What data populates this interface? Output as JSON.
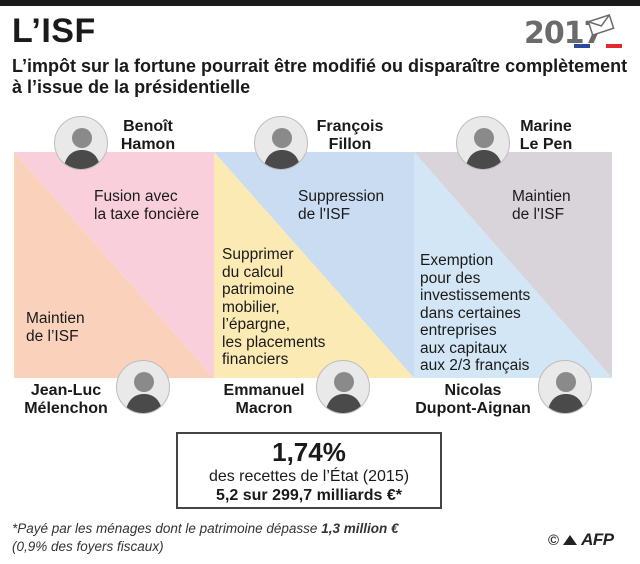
{
  "header": {
    "title": "L’ISF",
    "logo_year": "2017",
    "subtitle": "L’impôt sur la fortune pourrait être modifié ou disparaître complètement à l’issue de la présidentielle"
  },
  "colors": {
    "hamon": "#f9cfdc",
    "melenchon": "#fad2bc",
    "fillon": "#c9dcf2",
    "macron": "#fbeab3",
    "lepen": "#d8d4da",
    "dupont_aignan": "#d3e6f5",
    "flag_blue": "#2b4a9b",
    "flag_white": "#ffffff",
    "flag_red": "#e2272d"
  },
  "candidates": [
    {
      "id": "hamon",
      "name_lines": [
        "Benoît",
        "Hamon"
      ],
      "proposal_lines": [
        "Fusion avec",
        "la taxe foncière"
      ]
    },
    {
      "id": "melenchon",
      "name_lines": [
        "Jean-Luc",
        "Mélenchon"
      ],
      "proposal_lines": [
        "Maintien",
        "de l’ISF"
      ]
    },
    {
      "id": "fillon",
      "name_lines": [
        "François",
        "Fillon"
      ],
      "proposal_lines": [
        "Suppression",
        "de l'ISF"
      ]
    },
    {
      "id": "macron",
      "name_lines": [
        "Emmanuel",
        "Macron"
      ],
      "proposal_lines": [
        "Supprimer",
        "du calcul",
        "patrimoine",
        "mobilier,",
        "l’épargne,",
        "les placements",
        "financiers"
      ]
    },
    {
      "id": "lepen",
      "name_lines": [
        "Marine",
        "Le Pen"
      ],
      "proposal_lines": [
        "Maintien",
        "de l'ISF"
      ]
    },
    {
      "id": "dupont_aignan",
      "name_lines": [
        "Nicolas",
        "Dupont-Aignan"
      ],
      "proposal_lines": [
        "Exemption",
        "pour des",
        "investissements",
        "dans certaines",
        "entreprises",
        "aux capitaux",
        "aux 2/3 français"
      ]
    }
  ],
  "stat": {
    "value": "1,74%",
    "description": "des recettes de l’État (2015)",
    "detail": "5,2 sur 299,7 milliards €*"
  },
  "footnote": {
    "line1_prefix": "*Payé par les ménages dont  le patrimoine dépasse ",
    "line1_amount": "1,3 million €",
    "line2": "(0,9% des foyers fiscaux)"
  },
  "credit": {
    "symbol": "©",
    "agency": "AFP"
  }
}
